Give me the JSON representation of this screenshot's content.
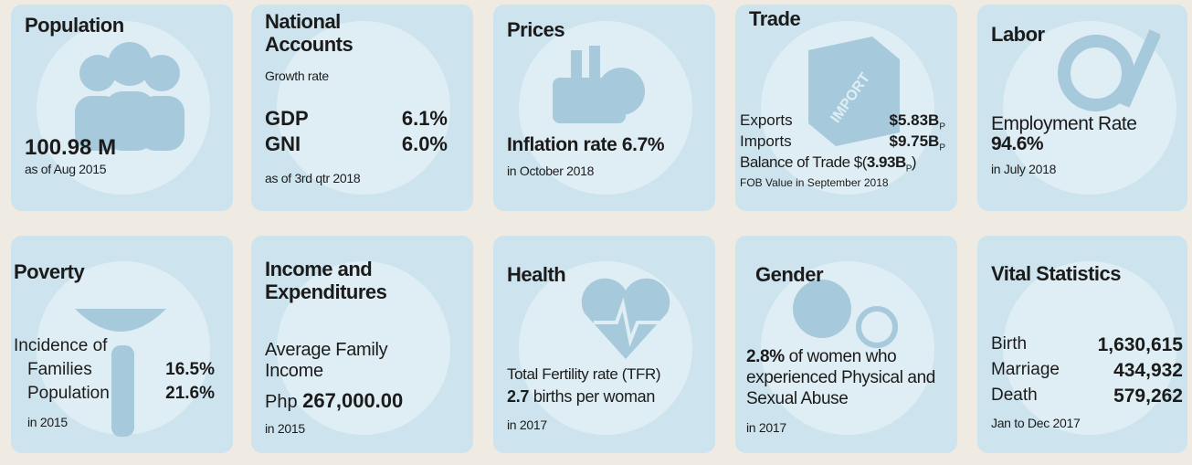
{
  "tiles": [
    {
      "title": "Population",
      "value": "100.98 M",
      "note": "as of Aug 2015"
    },
    {
      "title": "National Accounts",
      "subtitle": "Growth rate",
      "rows": [
        {
          "label": "GDP",
          "value": "6.1%"
        },
        {
          "label": "GNI",
          "value": "6.0%"
        }
      ],
      "note": "as of 3rd qtr 2018"
    },
    {
      "title": "Prices",
      "label": "Inflation rate",
      "value": "6.7%",
      "note": "in October 2018"
    },
    {
      "title": "Trade",
      "icon_text": "IMPORT",
      "rows": [
        {
          "label": "Exports",
          "value": "$5.83B",
          "flag": "P"
        },
        {
          "label": "Imports",
          "value": "$9.75B",
          "flag": "P"
        },
        {
          "label": "Balance of Trade $(",
          "value": "3.93B",
          "flag": "P",
          "suffix": ")"
        }
      ],
      "note": "FOB Value in September 2018"
    },
    {
      "title": "Labor",
      "label": "Employment Rate",
      "value": "94.6%",
      "note": "in July 2018"
    },
    {
      "title": "Poverty",
      "label": "Incidence of",
      "rows": [
        {
          "label": "Families",
          "value": "16.5%"
        },
        {
          "label": "Population",
          "value": "21.6%"
        }
      ],
      "note": "in 2015"
    },
    {
      "title": "Income and Expenditures",
      "label": "Average Family Income",
      "prefix": "Php",
      "value": "267,000.00",
      "note": "in 2015"
    },
    {
      "title": "Health",
      "label": "Total Fertility rate (TFR)",
      "value": "2.7",
      "unit": "births per woman",
      "note": "in 2017"
    },
    {
      "title": "Gender",
      "value": "2.8%",
      "label": "of women who experienced Physical and Sexual Abuse",
      "note": "in 2017"
    },
    {
      "title": "Vital Statistics",
      "rows": [
        {
          "label": "Birth",
          "value": "1,630,615"
        },
        {
          "label": "Marriage",
          "value": "434,932"
        },
        {
          "label": "Death",
          "value": "579,262"
        }
      ],
      "note": "Jan to Dec 2017"
    }
  ]
}
